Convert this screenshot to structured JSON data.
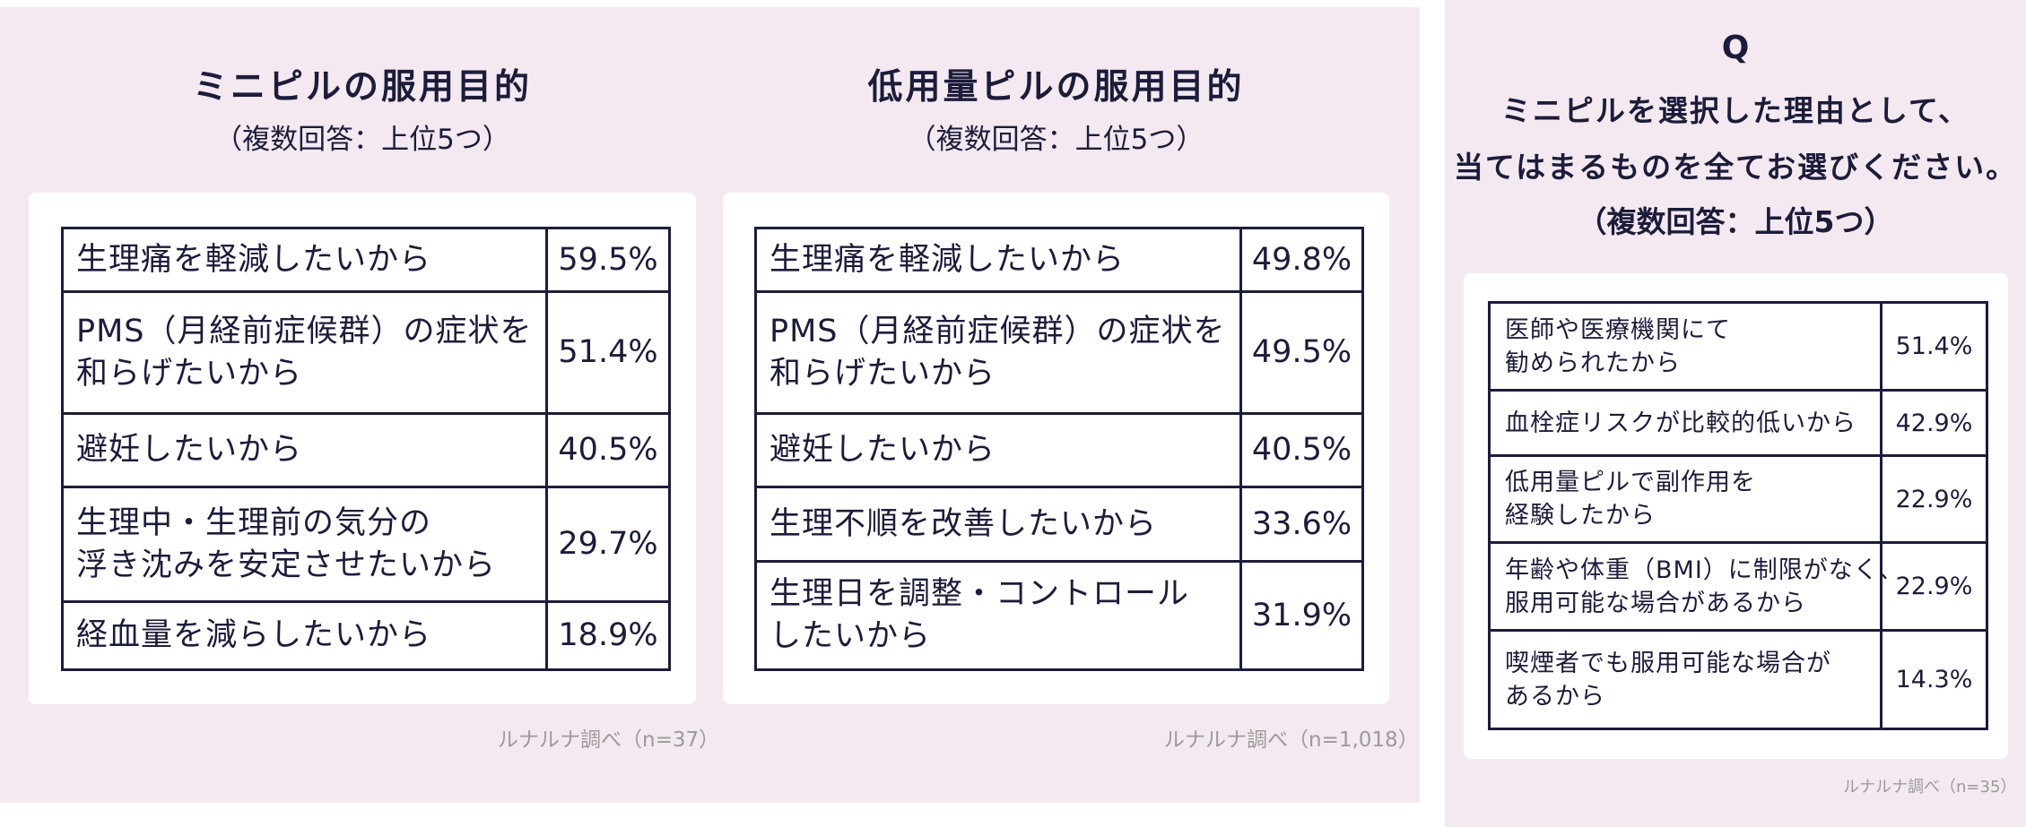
{
  "left_survey": {
    "title": "ミニピルの服用目的",
    "subtitle": "（複数回答：上位5つ）",
    "rows": [
      {
        "label": "生理痛を軽減したいから",
        "value": "59.5%"
      },
      {
        "label": "PMS（月経前症候群）の症状を\n和らげたいから",
        "value": "51.4%"
      },
      {
        "label": "避妊したいから",
        "value": "40.5%"
      },
      {
        "label": "生理中・生理前の気分の\n浮き沈みを安定させたいから",
        "value": "29.7%"
      },
      {
        "label": "経血量を減らしたいから",
        "value": "18.9%"
      }
    ],
    "source": "ルナルナ調べ（n=37）"
  },
  "middle_survey": {
    "title": "低用量ピルの服用目的",
    "subtitle": "（複数回答：上位5つ）",
    "rows": [
      {
        "label": "生理痛を軽減したいから",
        "value": "49.8%"
      },
      {
        "label": "PMS（月経前症候群）の症状を\n和らげたいから",
        "value": "49.5%"
      },
      {
        "label": "避妊したいから",
        "value": "40.5%"
      },
      {
        "label": "生理不順を改善したいから",
        "value": "33.6%"
      },
      {
        "label": "生理日を調整・コントロール\nしたいから",
        "value": "31.9%"
      }
    ],
    "source": "ルナルナ調べ（n=1,018）"
  },
  "right_survey": {
    "q_mark": "Q",
    "question_line1": "ミニピルを選択した理由として、",
    "question_line2": "当てはまるものを全てお選びください。",
    "subtitle": "（複数回答：上位5つ）",
    "rows": [
      {
        "label": "医師や医療機関にて\n勧められたから",
        "value": "51.4%"
      },
      {
        "label": "血栓症リスクが比較的低いから",
        "value": "42.9%"
      },
      {
        "label": "低用量ピルで副作用を\n経験したから",
        "value": "22.9%"
      },
      {
        "label": "年齢や体重（BMI）に制限がなく、\n服用可能な場合があるから",
        "value": "22.9%"
      },
      {
        "label": "喫煙者でも服用可能な場合が\nあるから",
        "value": "14.3%"
      }
    ],
    "source": "ルナルナ調べ（n=35）"
  }
}
